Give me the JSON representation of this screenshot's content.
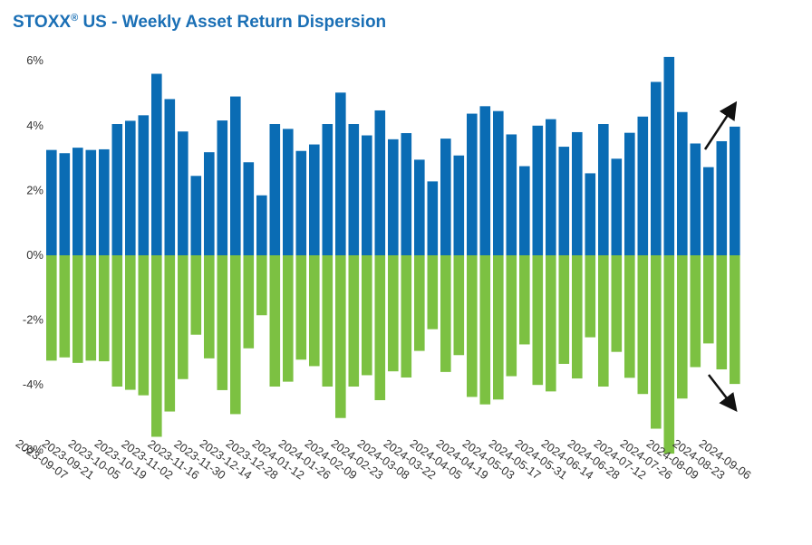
{
  "title_main": "STOXX",
  "title_reg": "®",
  "title_rest": " US - Weekly Asset Return Dispersion",
  "chart_data": {
    "type": "bar",
    "title": "STOXX® US - Weekly Asset Return Dispersion",
    "ylim": [
      -0.07,
      0.06
    ],
    "yticks": [
      "6%",
      "4%",
      "2%",
      "0%",
      "-2%",
      "-4%",
      "-6%"
    ],
    "ytick_values": [
      0.06,
      0.04,
      0.02,
      0,
      -0.02,
      -0.04,
      -0.06
    ],
    "xtick_labels": [
      "2023-09-07",
      "2023-09-21",
      "2023-10-05",
      "2023-10-19",
      "2023-11-02",
      "2023-11-16",
      "2023-11-30",
      "2023-12-14",
      "2023-12-28",
      "2024-01-12",
      "2024-01-26",
      "2024-02-09",
      "2024-02-23",
      "2024-03-08",
      "2024-03-22",
      "2024-04-05",
      "2024-04-19",
      "2024-05-03",
      "2024-05-17",
      "2024-05-31",
      "2024-06-14",
      "2024-06-28",
      "2024-07-12",
      "2024-07-26",
      "2024-08-09",
      "2024-08-23",
      "2024-09-06"
    ],
    "values": [
      0.0325,
      0.0315,
      0.0332,
      0.0325,
      0.0327,
      0.0405,
      0.0415,
      0.0432,
      0.056,
      0.0482,
      0.0382,
      0.0245,
      0.0318,
      0.0416,
      0.049,
      0.0287,
      0.0185,
      0.0405,
      0.039,
      0.0322,
      0.0342,
      0.0405,
      0.0502,
      0.0405,
      0.037,
      0.0447,
      0.0358,
      0.0377,
      0.0295,
      0.0228,
      0.036,
      0.0308,
      0.0437,
      0.046,
      0.0445,
      0.0373,
      0.0275,
      0.04,
      0.042,
      0.0335,
      0.038,
      0.0253,
      0.0405,
      0.0298,
      0.0378,
      0.0428,
      0.0535,
      0.0612,
      0.0442,
      0.0345,
      0.0272,
      0.0352,
      0.0397
    ],
    "colors": {
      "positive": "#0a6cb4",
      "negative": "#7cc142"
    },
    "annotations": "arrows pointing up and down beside the last bars"
  }
}
